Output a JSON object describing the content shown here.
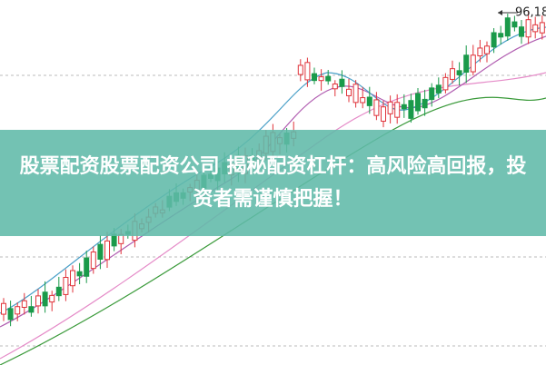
{
  "banner": {
    "title": "股票配资股票配资公司 揭秘配资杠杆：高风险高回报，投资者需谨慎把握！"
  },
  "price_label": "96,18"
}
